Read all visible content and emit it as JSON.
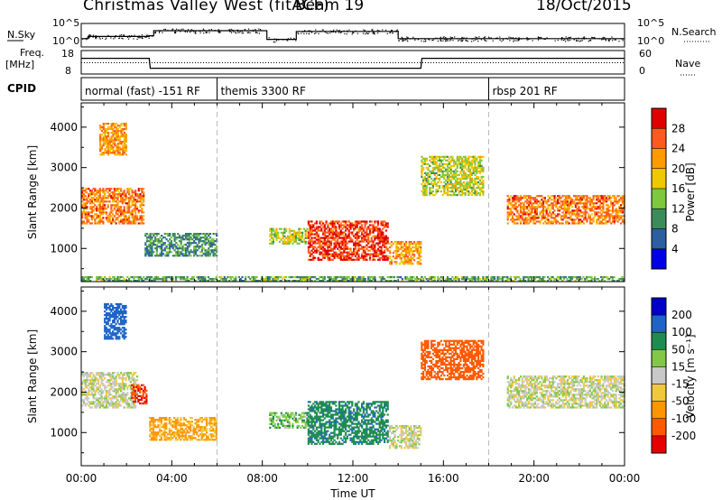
{
  "header": {
    "title": "Christmas Valley West (fitACF)",
    "beam": "Beam 19",
    "date": "18/Oct/2015"
  },
  "noise_panel": {
    "left_label": "N.Sky",
    "left_ticks": [
      "10^5",
      "10^0"
    ],
    "right_label": "N.Search",
    "right_ticks": [
      "10^5",
      "10^0"
    ]
  },
  "freq_panel": {
    "left_label_line1": "Freq.",
    "left_label_line2": "[MHz]",
    "left_ticks": [
      "18",
      "8"
    ],
    "right_label": "Nave",
    "right_ticks": [
      "60",
      "0"
    ]
  },
  "cpid_panel": {
    "label": "CPID",
    "programs": [
      {
        "name": "normal (fast) -151 RF",
        "start_hour": 0
      },
      {
        "name": "themis 3300 RF",
        "start_hour": 6
      },
      {
        "name": "rbsp 201 RF",
        "start_hour": 18
      }
    ]
  },
  "x_axis": {
    "label": "Time UT",
    "ticks": [
      "00:00",
      "04:00",
      "08:00",
      "12:00",
      "16:00",
      "20:00",
      "00:00"
    ],
    "range_hours": [
      0,
      24
    ]
  },
  "power_colorbar": {
    "title": "Power [dB]",
    "ticks": [
      "28",
      "24",
      "20",
      "16",
      "12",
      "8",
      "4"
    ],
    "colors": [
      "#e00000",
      "#ff5a1e",
      "#ff9b00",
      "#f0c800",
      "#7dc83c",
      "#3c8c5a",
      "#2d5fa0",
      "#0000e6"
    ]
  },
  "velocity_colorbar": {
    "title": "Velocity [m s⁻¹]",
    "ticks": [
      "200",
      "100",
      "50",
      "15",
      "-15",
      "-50",
      "-100",
      "-200"
    ],
    "colors": [
      "#0000c8",
      "#1e64c8",
      "#1e8c50",
      "#82c846",
      "#c8c8c8",
      "#f0c83c",
      "#ff9600",
      "#ff5a00",
      "#e60000"
    ]
  },
  "chart_data": [
    {
      "type": "line",
      "title": "Noise",
      "x": [
        0,
        0.3,
        3.0,
        3.2,
        6.0,
        8.0,
        8.2,
        9.5,
        12.0,
        13.5,
        14.0,
        15.0,
        18.0,
        24.0
      ],
      "series": [
        {
          "values": [
            0.9,
            1.2,
            1.3,
            2.0,
            2.0,
            2.0,
            0.8,
            1.9,
            1.9,
            1.9,
            0.9,
            0.9,
            0.9,
            0.9
          ]
        }
      ]
    },
    {
      "type": "line",
      "title": "",
      "ylabel_left": "Freq. [MHz]",
      "ylabel_right": "Nave",
      "x": [
        0,
        3.0,
        3.05,
        15.0,
        15.05,
        24
      ],
      "series": [
        {
          "values": [
            15,
            15,
            10,
            10,
            15,
            15
          ]
        },
        {
          "values": [
            26,
            26,
            26,
            26,
            26,
            26
          ]
        }
      ],
      "ylim": [
        8,
        18
      ]
    },
    {
      "type": "heatmap",
      "title": "Power",
      "xlabel": "Time UT",
      "ylabel": "Slant Range [km]",
      "yticks": [
        1000,
        2000,
        3000,
        4000
      ],
      "xlim": [
        0,
        24
      ],
      "ylim": [
        180,
        4600
      ],
      "regions": [
        {
          "t0": 0.0,
          "t1": 2.8,
          "r0": 1600,
          "r1": 2500,
          "level_db": 22
        },
        {
          "t0": 0.8,
          "t1": 2.0,
          "r0": 3300,
          "r1": 4100,
          "level_db": 20
        },
        {
          "t0": 2.8,
          "t1": 6.0,
          "r0": 800,
          "r1": 1400,
          "level_db": 8
        },
        {
          "t0": 8.3,
          "t1": 10.0,
          "r0": 1100,
          "r1": 1500,
          "level_db": 14
        },
        {
          "t0": 10.0,
          "t1": 13.6,
          "r0": 700,
          "r1": 1700,
          "level_db": 26
        },
        {
          "t0": 13.6,
          "t1": 15.0,
          "r0": 600,
          "r1": 1200,
          "level_db": 20
        },
        {
          "t0": 15.0,
          "t1": 17.8,
          "r0": 2300,
          "r1": 3300,
          "level_db": 14
        },
        {
          "t0": 18.8,
          "t1": 24.0,
          "r0": 1600,
          "r1": 2300,
          "level_db": 22
        },
        {
          "t0": 0.0,
          "t1": 24.0,
          "r0": 180,
          "r1": 320,
          "level_db": 10
        }
      ]
    },
    {
      "type": "heatmap",
      "title": "Velocity",
      "xlabel": "Time UT",
      "ylabel": "Slant Range [km]",
      "yticks": [
        1000,
        2000,
        3000,
        4000
      ],
      "xlim": [
        0,
        24
      ],
      "ylim": [
        180,
        4600
      ],
      "regions": [
        {
          "t0": 0.0,
          "t1": 2.5,
          "r0": 1600,
          "r1": 2500,
          "velocity": 0
        },
        {
          "t0": 1.0,
          "t1": 2.0,
          "r0": 3300,
          "r1": 4200,
          "velocity": 150
        },
        {
          "t0": 2.2,
          "t1": 2.9,
          "r0": 1700,
          "r1": 2200,
          "velocity": -200
        },
        {
          "t0": 3.0,
          "t1": 6.0,
          "r0": 800,
          "r1": 1400,
          "velocity": -60
        },
        {
          "t0": 8.3,
          "t1": 10.0,
          "r0": 1100,
          "r1": 1500,
          "velocity": 40
        },
        {
          "t0": 10.0,
          "t1": 13.6,
          "r0": 700,
          "r1": 1800,
          "velocity": 80
        },
        {
          "t0": 13.6,
          "t1": 15.0,
          "r0": 600,
          "r1": 1200,
          "velocity": 0
        },
        {
          "t0": 15.0,
          "t1": 17.8,
          "r0": 2300,
          "r1": 3300,
          "velocity": -150
        },
        {
          "t0": 18.8,
          "t1": 24.0,
          "r0": 1600,
          "r1": 2400,
          "velocity": 0
        }
      ]
    }
  ]
}
